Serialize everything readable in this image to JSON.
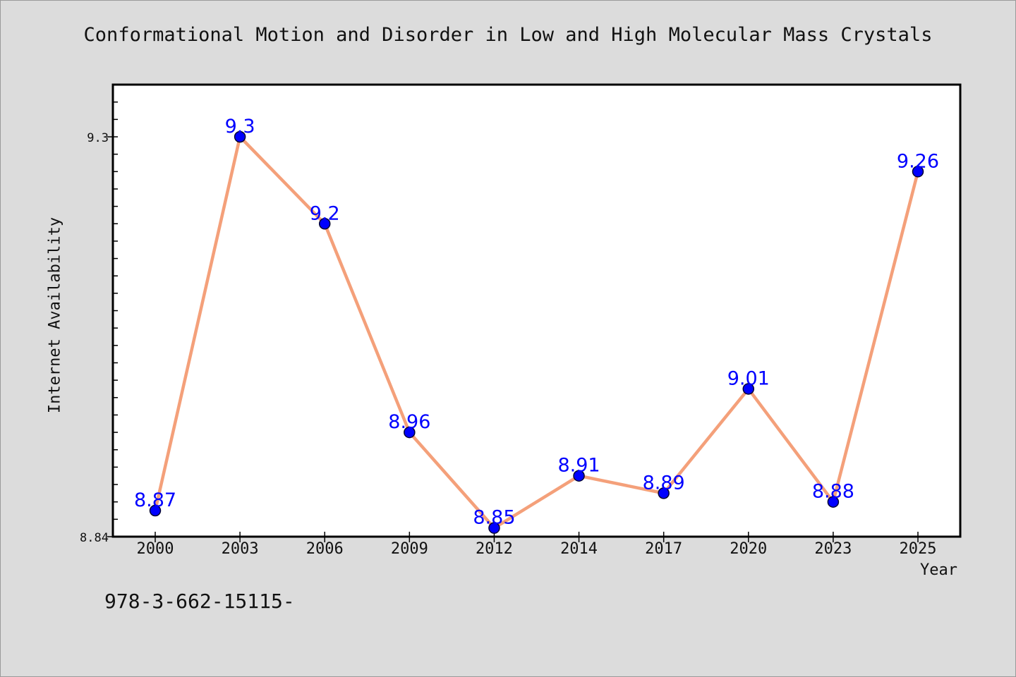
{
  "chart_data": {
    "type": "line",
    "title": "Conformational Motion and Disorder in Low and High Molecular Mass Crystals",
    "xlabel": "Year",
    "ylabel": "Internet Availability",
    "categories": [
      "2000",
      "2003",
      "2006",
      "2009",
      "2012",
      "2014",
      "2017",
      "2020",
      "2023",
      "2025"
    ],
    "series": [
      {
        "values": [
          8.87,
          9.3,
          9.2,
          8.96,
          8.85,
          8.91,
          8.89,
          9.01,
          8.88,
          9.26
        ],
        "data_labels": [
          "8.87",
          "9.3",
          "9.2",
          "8.96",
          "8.85",
          "8.91",
          "8.89",
          "9.01",
          "8.88",
          "9.26"
        ]
      }
    ],
    "y_tick_labels": [
      "9.3",
      "8.84"
    ],
    "ylim": [
      8.84,
      9.36
    ],
    "grid": false,
    "legend": "none",
    "colors": {
      "line": "#f4a07a",
      "marker_fill": "#0000ff",
      "marker_edge": "#000033",
      "data_label": "#0000ff",
      "background": "#dcdcdc",
      "plot_area": "#ffffff"
    }
  },
  "footnote": "978-3-662-15115-"
}
